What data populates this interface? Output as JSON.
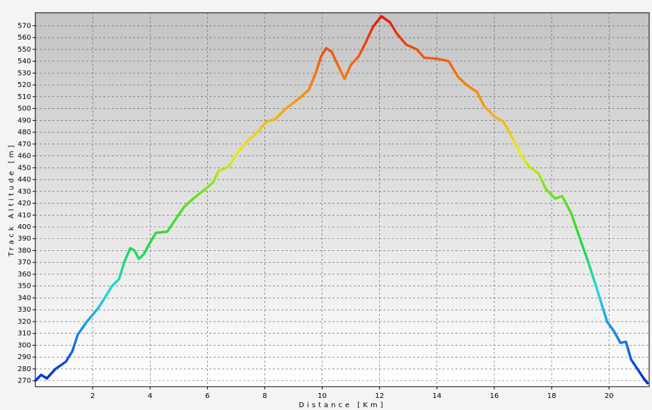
{
  "chart_data": {
    "type": "line",
    "x_label": "Distance [Km]",
    "y_label": "Track Altitude [m]",
    "xlim": [
      0,
      21.4
    ],
    "ylim": [
      265,
      581
    ],
    "xticks": [
      2,
      4,
      6,
      8,
      10,
      12,
      14,
      16,
      18,
      20
    ],
    "yticks": [
      270,
      280,
      290,
      300,
      310,
      320,
      330,
      340,
      350,
      360,
      370,
      380,
      390,
      400,
      410,
      420,
      430,
      440,
      450,
      460,
      470,
      480,
      490,
      500,
      510,
      520,
      530,
      540,
      550,
      560,
      570
    ],
    "grid": true,
    "colors": [
      "#0022cc",
      "#1a7be8",
      "#22d8e0",
      "#22d84a",
      "#5ee020",
      "#e8ee10",
      "#f5a010",
      "#f06010",
      "#e01010"
    ],
    "series": [
      {
        "name": "Track Altitude",
        "x": [
          0,
          0.2,
          0.4,
          0.7,
          1.06,
          1.29,
          1.48,
          1.8,
          2.18,
          2.42,
          2.67,
          2.92,
          3.11,
          3.31,
          3.46,
          3.61,
          3.78,
          3.96,
          4.2,
          4.6,
          4.85,
          5.19,
          5.51,
          5.93,
          6.21,
          6.38,
          6.75,
          7.0,
          7.37,
          7.74,
          8.06,
          8.36,
          8.73,
          9.22,
          9.54,
          9.79,
          9.96,
          10.14,
          10.33,
          10.58,
          10.78,
          11.0,
          11.27,
          11.52,
          11.77,
          12.06,
          12.36,
          12.61,
          12.93,
          13.3,
          13.55,
          14.04,
          14.41,
          14.73,
          15.03,
          15.4,
          15.65,
          16.02,
          16.32,
          16.64,
          16.96,
          17.21,
          17.55,
          17.8,
          18.12,
          18.37,
          18.69,
          18.99,
          19.28,
          19.6,
          19.93,
          20.17,
          20.4,
          20.59,
          20.77,
          20.96,
          21.21,
          21.34
        ],
        "values": [
          270,
          275,
          272,
          280,
          286,
          295,
          309,
          320,
          331,
          340,
          350,
          356,
          371,
          382,
          380,
          373,
          377,
          385,
          395,
          396,
          405,
          417,
          424,
          432,
          438,
          447,
          451,
          461,
          472,
          480,
          489,
          491,
          500,
          509,
          516,
          531,
          544,
          551,
          548,
          535,
          525,
          537,
          544,
          556,
          569,
          578,
          573,
          563,
          554,
          550,
          543,
          542,
          540,
          527,
          520,
          514,
          502,
          493,
          489,
          475,
          460,
          451,
          445,
          432,
          424,
          426,
          411,
          390,
          370,
          346,
          320,
          312,
          302,
          303,
          288,
          281,
          272,
          268
        ]
      }
    ]
  }
}
